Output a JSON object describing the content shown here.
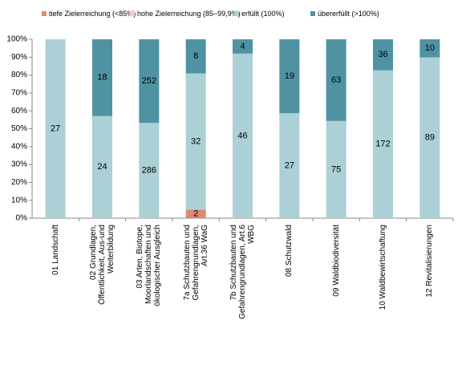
{
  "chart_data": {
    "type": "bar",
    "stacked": "percent",
    "categories": [
      "01 Landschaft",
      "02 Grundlagen, Öffentlichkeit, Aus-und Weiterbildung",
      "03 Arten, Biotope, Moorlandschaften und ökologischer Ausgleich",
      "7a Schutzbauten und Gefahrengrundlagen, Art.36 WaG",
      "7b Schutzbauten und Gefahrengrundlagen, Art.6 WBG",
      "08 Schutzwald",
      "09 Waldbiodiversität",
      "10 Waldbewirtschaftung",
      "12 Revitalisierungen"
    ],
    "series": [
      {
        "name": "tiefe Zielerreichung (<85%)",
        "color": "#dd8a74",
        "values": [
          0,
          0,
          0,
          2,
          0,
          0,
          0,
          0,
          0
        ]
      },
      {
        "name": "hohe Zielerreichung (85–99,9%)",
        "color": "#f2cdc6",
        "values": [
          0,
          0,
          1,
          0,
          0,
          0,
          0,
          0,
          0
        ]
      },
      {
        "name": "erfüllt (100%)",
        "color": "#abd0d6",
        "values": [
          27,
          24,
          286,
          32,
          46,
          27,
          75,
          172,
          89
        ]
      },
      {
        "name": "übererfüllt (>100%)",
        "color": "#4f93a3",
        "values": [
          0,
          18,
          252,
          8,
          4,
          19,
          63,
          36,
          10
        ]
      }
    ],
    "ylim": [
      0,
      100
    ],
    "yticks": [
      {
        "value": 0,
        "label": "0%"
      },
      {
        "value": 10,
        "label": "10%"
      },
      {
        "value": 20,
        "label": "20%"
      },
      {
        "value": 30,
        "label": "30%"
      },
      {
        "value": 40,
        "label": "40%"
      },
      {
        "value": 50,
        "label": "50%"
      },
      {
        "value": 60,
        "label": "60%"
      },
      {
        "value": 70,
        "label": "70%"
      },
      {
        "value": 80,
        "label": "80%"
      },
      {
        "value": 90,
        "label": "90%"
      },
      {
        "value": 100,
        "label": "100%"
      }
    ],
    "grid": false,
    "legend": "top"
  }
}
